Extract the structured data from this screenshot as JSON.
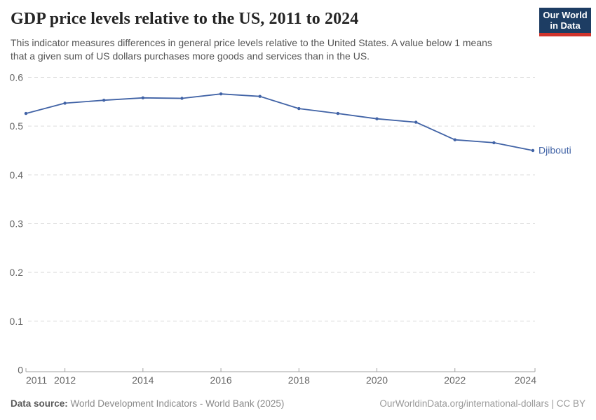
{
  "header": {
    "title": "GDP price levels relative to the US, 2011 to 2024",
    "subtitle_lines": [
      "This indicator measures differences in general price levels relative to the United States. A value below 1 means",
      "that a given sum of US dollars purchases more goods and services than in the US."
    ],
    "logo_lines": [
      "Our World",
      "in Data"
    ],
    "logo_bg_color": "#1d3d63",
    "logo_accent_color": "#d0342c"
  },
  "chart_data": {
    "type": "line",
    "title": "GDP price levels relative to the US, 2011 to 2024",
    "xlabel": "",
    "ylabel": "",
    "xlim": [
      2011,
      2024
    ],
    "ylim": [
      0,
      0.6
    ],
    "x_ticks": [
      2011,
      2012,
      2014,
      2016,
      2018,
      2020,
      2022,
      2024
    ],
    "y_ticks": [
      0,
      0.1,
      0.2,
      0.3,
      0.4,
      0.5,
      0.6
    ],
    "grid": "horizontal-dashed",
    "legend": "end-of-line-label",
    "grid_color": "#dcdcdc",
    "axis_color": "#a3a3a3",
    "tick_label_color": "#666666",
    "series": [
      {
        "name": "Djibouti",
        "color": "#4163a6",
        "x": [
          2011,
          2012,
          2013,
          2014,
          2015,
          2016,
          2017,
          2018,
          2019,
          2020,
          2021,
          2022,
          2023,
          2024
        ],
        "y": [
          0.526,
          0.547,
          0.553,
          0.558,
          0.557,
          0.566,
          0.561,
          0.536,
          0.526,
          0.515,
          0.508,
          0.472,
          0.466,
          0.45
        ]
      }
    ]
  },
  "footer": {
    "source_label": "Data source:",
    "source_text": " World Development Indicators - World Bank (2025)",
    "credit": "OurWorldinData.org/international-dollars | CC BY"
  }
}
